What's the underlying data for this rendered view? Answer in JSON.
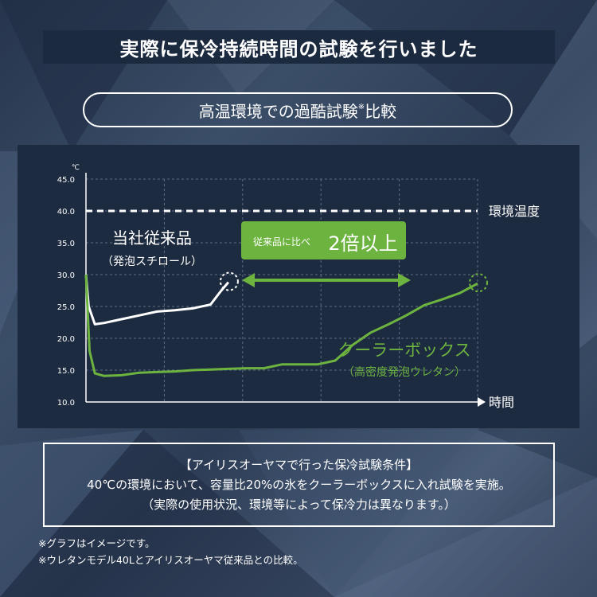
{
  "header": {
    "title": "実際に保冷持続時間の試験を行いました"
  },
  "subtitle": {
    "text": "高温環境での過酷試験",
    "mark": "※",
    "suffix": "比較"
  },
  "chart_data": {
    "type": "line",
    "yunit": "℃",
    "xlabel": "時間",
    "ylim": [
      10,
      45
    ],
    "yticks": [
      "45.0",
      "40.0",
      "35.0",
      "30.0",
      "25.0",
      "20.0",
      "15.0",
      "10.0"
    ],
    "grid": true,
    "reference_line": {
      "label": "環境温度",
      "value": 40
    },
    "series": [
      {
        "name": "当社従来品",
        "sublabel": "（発泡スチロール）",
        "color": "#ffffff",
        "x": [
          0,
          0.15,
          0.5,
          1,
          2,
          3,
          4,
          5,
          6,
          7,
          7.6,
          8
        ],
        "y": [
          30,
          25,
          22.2,
          22.4,
          23,
          23.6,
          24.2,
          24.4,
          24.7,
          25.3,
          27.5,
          28.8
        ]
      },
      {
        "name": "クーラーボックス",
        "sublabel": "（高密度発泡ウレタン）",
        "color": "#6db33f",
        "x": [
          0,
          0.2,
          0.5,
          1,
          2,
          3,
          4,
          5,
          6,
          7,
          8,
          9,
          10,
          11,
          12,
          13,
          14,
          15,
          16,
          17,
          18,
          19,
          20,
          21,
          22
        ],
        "y": [
          30,
          18,
          14.5,
          14.1,
          14.2,
          14.6,
          14.7,
          14.8,
          15,
          15.1,
          15.2,
          15.3,
          15.3,
          15.9,
          15.9,
          15.9,
          16.5,
          19,
          20.9,
          22.2,
          23.6,
          25.2,
          26.1,
          27.1,
          28.6
        ]
      }
    ],
    "comparison": {
      "prefix": "従来品に比べ",
      "value": "2倍以上"
    },
    "series_colors": {
      "white": "#ffffff",
      "green": "#6db33f"
    }
  },
  "conditions": {
    "heading": "【アイリスオーヤマで行った保冷試験条件】",
    "line1": "40℃の環境において、容量比20%の氷をクーラーボックスに入れ試験を実施。",
    "line2": "（実際の使用状況、環境等によって保冷力は異なります。）"
  },
  "notes": {
    "note1": "※グラフはイメージです。",
    "note2": "※ウレタンモデル40Lとアイリスオーヤマ従来品との比較。"
  }
}
